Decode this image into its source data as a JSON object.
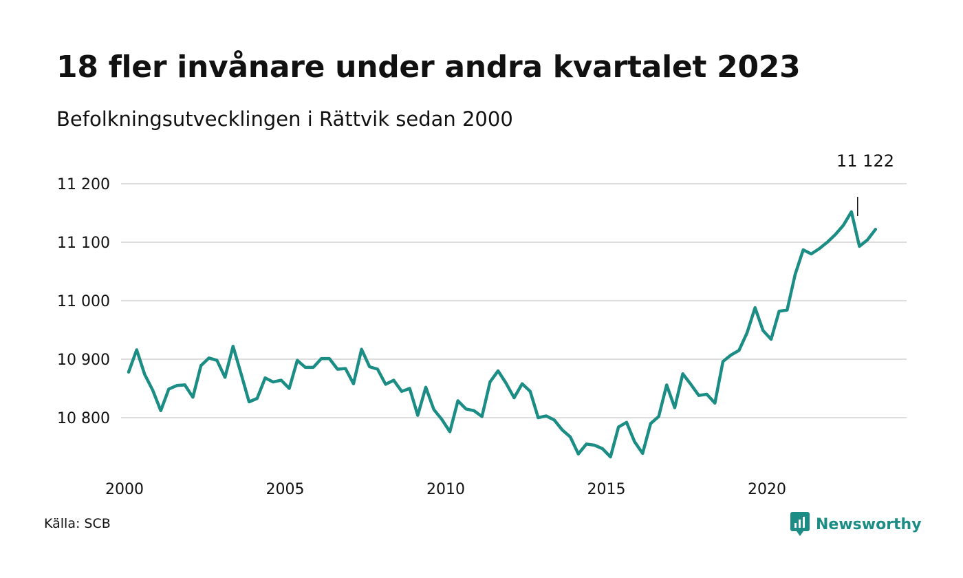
{
  "title": "18 fler invånare under andra kvartalet 2023",
  "subtitle": "Befolkningsutvecklingen i Rättvik sedan 2000",
  "source": "Källa: SCB",
  "brand": {
    "name": "Newsworthy",
    "icon": "newsworthy-logo-icon",
    "color": "#1b8d85"
  },
  "colors": {
    "line": "#1b8d85",
    "grid": "#dddddd",
    "text": "#111111"
  },
  "chart_data": {
    "type": "line",
    "title": "18 fler invånare under andra kvartalet 2023",
    "subtitle": "Befolkningsutvecklingen i Rättvik sedan 2000",
    "xlabel": "",
    "ylabel": "",
    "x_start": 2000.0,
    "x_step": 0.25,
    "xlim": [
      2000,
      2024
    ],
    "ylim": [
      10720,
      11220
    ],
    "x_ticks": [
      2000,
      2005,
      2010,
      2015,
      2020
    ],
    "y_ticks": [
      10800,
      10900,
      11000,
      11100,
      11200
    ],
    "y_tick_labels": [
      "10 800",
      "10 900",
      "11 000",
      "11 100",
      "11 200"
    ],
    "grid": true,
    "legend": "none",
    "annotation": {
      "label": "11 122",
      "value": 11122
    },
    "series": [
      {
        "color": "#1b8d85",
        "values": [
          10878,
          10916,
          10874,
          10847,
          10812,
          10849,
          10855,
          10856,
          10835,
          10889,
          10902,
          10898,
          10869,
          10922,
          10875,
          10827,
          10833,
          10868,
          10861,
          10864,
          10850,
          10898,
          10886,
          10886,
          10901,
          10901,
          10883,
          10884,
          10858,
          10917,
          10887,
          10883,
          10857,
          10864,
          10845,
          10850,
          10804,
          10852,
          10814,
          10797,
          10776,
          10829,
          10815,
          10812,
          10802,
          10861,
          10880,
          10859,
          10834,
          10858,
          10845,
          10800,
          10803,
          10796,
          10779,
          10767,
          10738,
          10755,
          10753,
          10747,
          10733,
          10784,
          10792,
          10759,
          10739,
          10790,
          10802,
          10856,
          10817,
          10875,
          10857,
          10838,
          10840,
          10825,
          10896,
          10907,
          10915,
          10945,
          10988,
          10949,
          10934,
          10982,
          10984,
          11045,
          11087,
          11080,
          11089,
          11100,
          11113,
          11129,
          11152,
          11093,
          11104,
          11122
        ]
      }
    ]
  }
}
